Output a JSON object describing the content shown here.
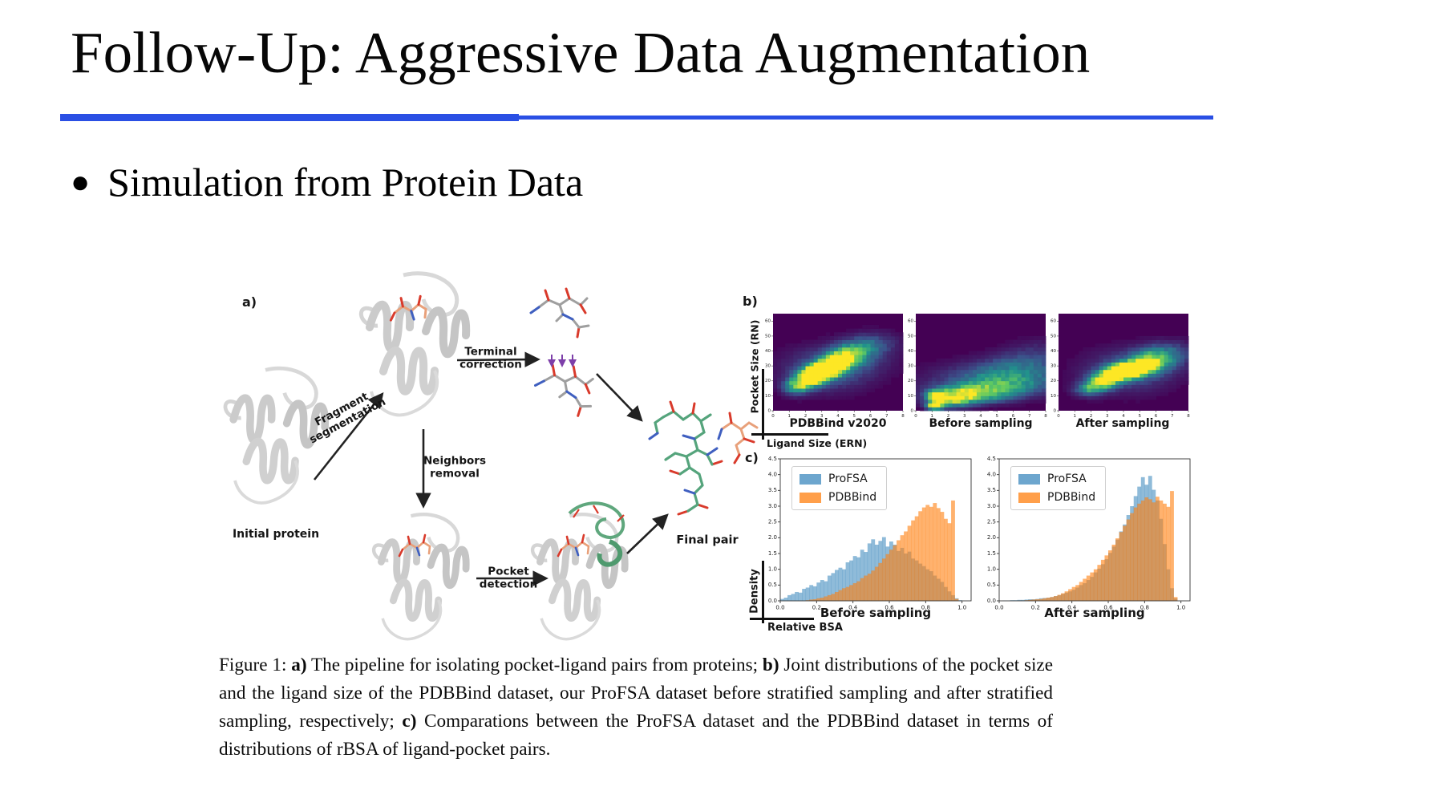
{
  "slide": {
    "title": "Follow-Up: Aggressive Data Augmentation",
    "bullet_marker": "●",
    "bullet": "Simulation from Protein Data",
    "accent_color": "#2a4fe4"
  },
  "figure": {
    "panel_a": {
      "letter": "a)",
      "initial_protein_label": "Initial protein",
      "fragment_segmentation_label": "Fragment\nsegmentation",
      "terminal_correction_label": "Terminal\ncorrection",
      "neighbors_removal_label": "Neighbors\nremoval",
      "pocket_detection_label": "Pocket\ndetection",
      "final_pair_label": "Final pair"
    },
    "panel_b": {
      "letter": "b)"
    },
    "panel_c": {
      "letter": "c)"
    }
  },
  "caption": {
    "segments": [
      {
        "text": "Figure 1: ",
        "bold": false
      },
      {
        "text": "a)",
        "bold": true
      },
      {
        "text": " The pipeline for isolating pocket-ligand pairs from proteins; ",
        "bold": false
      },
      {
        "text": "b)",
        "bold": true
      },
      {
        "text": " Joint distributions of the pocket size and the ligand size of the PDBBind dataset, our ProFSA dataset before stratified sampling and after stratified sampling, respectively; ",
        "bold": false
      },
      {
        "text": "c)",
        "bold": true
      },
      {
        "text": " Comparations between the ProFSA dataset and the PDBBind dataset in terms of distributions of rBSA of ligand-pocket pairs.",
        "bold": false
      }
    ]
  },
  "chart_data": [
    {
      "id": "heatmap_pdbbind",
      "type": "heatmap",
      "title": "PDBBind v2020",
      "xlabel": "Ligand Size (ERN)",
      "ylabel": "Pocket Size (RN)",
      "xlim": [
        0,
        8
      ],
      "ylim": [
        0,
        65
      ],
      "xticks": [
        0,
        1,
        2,
        3,
        4,
        5,
        6,
        7,
        8
      ],
      "yticks": [
        0,
        10,
        20,
        30,
        40,
        50,
        60
      ],
      "colormap": "viridis",
      "density_blobs": [
        [
          1.3,
          16,
          0.5,
          3.5,
          0.45
        ],
        [
          2.0,
          20,
          0.55,
          4,
          0.75
        ],
        [
          2.6,
          24,
          0.5,
          3.5,
          0.95
        ],
        [
          3.0,
          27,
          0.55,
          3.5,
          1.0
        ],
        [
          3.5,
          29,
          0.5,
          3.5,
          0.9
        ],
        [
          4.0,
          33,
          0.55,
          4,
          0.7
        ],
        [
          4.6,
          37,
          0.7,
          4.5,
          0.5
        ],
        [
          5.4,
          41,
          0.9,
          5,
          0.3
        ],
        [
          6.3,
          46,
          1.0,
          5,
          0.18
        ],
        [
          3.2,
          27,
          1.7,
          9,
          0.3
        ],
        [
          5.0,
          34,
          1.6,
          8,
          0.15
        ]
      ]
    },
    {
      "id": "heatmap_before",
      "type": "heatmap",
      "title": "Before sampling",
      "xlim": [
        0,
        8
      ],
      "ylim": [
        0,
        65
      ],
      "xticks": [
        0,
        1,
        2,
        3,
        4,
        5,
        6,
        7,
        8
      ],
      "yticks": [
        0,
        10,
        20,
        30,
        40,
        50,
        60
      ],
      "colormap": "viridis",
      "density_blobs": [
        [
          1.2,
          3.5,
          0.35,
          1.8,
          1.0
        ],
        [
          1.2,
          10,
          0.35,
          2.2,
          0.8
        ],
        [
          2.2,
          6,
          0.9,
          3,
          0.5
        ],
        [
          2.6,
          12,
          1.1,
          3,
          0.45
        ],
        [
          3.5,
          9,
          1.6,
          3,
          0.4
        ],
        [
          4.5,
          14,
          2.0,
          3.5,
          0.38
        ],
        [
          5.5,
          19,
          2.0,
          4,
          0.32
        ],
        [
          6.0,
          25,
          2.0,
          4.5,
          0.26
        ],
        [
          6.5,
          31,
          1.8,
          4.5,
          0.2
        ],
        [
          7.0,
          37,
          1.5,
          4,
          0.13
        ],
        [
          4.0,
          20,
          2.6,
          8,
          0.16
        ],
        [
          7.5,
          44,
          1.2,
          4,
          0.07
        ]
      ]
    },
    {
      "id": "heatmap_after",
      "type": "heatmap",
      "title": "After sampling",
      "xlim": [
        0,
        8
      ],
      "ylim": [
        0,
        65
      ],
      "xticks": [
        0,
        1,
        2,
        3,
        4,
        5,
        6,
        7,
        8
      ],
      "yticks": [
        0,
        10,
        20,
        30,
        40,
        50,
        60
      ],
      "colormap": "viridis",
      "density_blobs": [
        [
          1.8,
          14,
          0.6,
          3,
          0.35
        ],
        [
          2.4,
          18,
          0.6,
          3.5,
          0.55
        ],
        [
          3.0,
          22,
          0.6,
          3.5,
          0.7
        ],
        [
          3.6,
          26,
          0.5,
          3.2,
          0.95
        ],
        [
          4.2,
          27,
          0.5,
          3.2,
          1.0
        ],
        [
          4.8,
          28,
          0.5,
          3.2,
          0.9
        ],
        [
          5.4,
          31,
          0.7,
          4,
          0.6
        ],
        [
          6.0,
          35,
          0.9,
          4.5,
          0.38
        ],
        [
          6.8,
          40,
          1.0,
          5,
          0.2
        ],
        [
          4.2,
          26,
          1.8,
          9,
          0.26
        ],
        [
          5.8,
          33,
          1.5,
          7,
          0.14
        ]
      ]
    },
    {
      "id": "hist_before",
      "type": "histogram",
      "title": "Before sampling",
      "xlabel": "Relative BSA",
      "ylabel": "Density",
      "xlim": [
        0,
        1.05
      ],
      "ylim": [
        0,
        4.5
      ],
      "xticks": [
        0.0,
        0.2,
        0.4,
        0.6,
        0.8,
        1.0
      ],
      "yticks": [
        0.0,
        0.5,
        1.0,
        1.5,
        2.0,
        2.5,
        3.0,
        3.5,
        4.0,
        4.5
      ],
      "bin_start": 0.0,
      "bin_width": 0.02,
      "legend_position": "upper-left",
      "series": [
        {
          "name": "ProFSA",
          "color": "#1f77b4",
          "alpha": 0.5,
          "values": [
            0.06,
            0.1,
            0.18,
            0.22,
            0.28,
            0.26,
            0.38,
            0.42,
            0.5,
            0.46,
            0.58,
            0.66,
            0.62,
            0.8,
            0.88,
            0.98,
            1.05,
            1.0,
            1.22,
            1.28,
            1.42,
            1.38,
            1.62,
            1.55,
            1.82,
            1.95,
            1.78,
            1.9,
            2.02,
            1.72,
            1.88,
            1.78,
            1.58,
            1.68,
            1.5,
            1.56,
            1.34,
            1.28,
            1.18,
            1.1,
            1.0,
            0.94,
            0.8,
            0.7,
            0.6,
            0.44,
            0.3,
            0.18,
            0.08,
            0.02
          ]
        },
        {
          "name": "PDBBind",
          "color": "#ff7f0e",
          "alpha": 0.6,
          "values": [
            0,
            0,
            0,
            0,
            0,
            0,
            0,
            0.02,
            0.04,
            0.05,
            0.08,
            0.1,
            0.14,
            0.18,
            0.22,
            0.28,
            0.34,
            0.4,
            0.44,
            0.5,
            0.56,
            0.62,
            0.72,
            0.8,
            0.86,
            0.96,
            1.08,
            1.2,
            1.34,
            1.48,
            1.62,
            1.76,
            1.92,
            2.08,
            2.2,
            2.38,
            2.55,
            2.68,
            2.84,
            2.96,
            3.04,
            2.98,
            3.1,
            2.94,
            2.82,
            2.6,
            2.46,
            3.18,
            0.06,
            0
          ]
        }
      ]
    },
    {
      "id": "hist_after",
      "type": "histogram",
      "title": "After sampling",
      "xlim": [
        0,
        1.05
      ],
      "ylim": [
        0,
        4.5
      ],
      "xticks": [
        0.0,
        0.2,
        0.4,
        0.6,
        0.8,
        1.0
      ],
      "yticks": [
        0.0,
        0.5,
        1.0,
        1.5,
        2.0,
        2.5,
        3.0,
        3.5,
        4.0,
        4.5
      ],
      "bin_start": 0.0,
      "bin_width": 0.02,
      "legend_position": "upper-left",
      "series": [
        {
          "name": "ProFSA",
          "color": "#1f77b4",
          "alpha": 0.5,
          "values": [
            0,
            0.01,
            0.01,
            0.02,
            0.02,
            0.03,
            0.03,
            0.04,
            0.05,
            0.05,
            0.06,
            0.08,
            0.09,
            0.1,
            0.12,
            0.15,
            0.18,
            0.22,
            0.26,
            0.3,
            0.35,
            0.42,
            0.5,
            0.56,
            0.66,
            0.76,
            0.9,
            1.02,
            1.16,
            1.32,
            1.52,
            1.72,
            1.94,
            2.2,
            2.42,
            2.72,
            3.0,
            3.32,
            3.62,
            3.92,
            3.68,
            3.96,
            3.52,
            3.18,
            2.6,
            1.8,
            1.0,
            0.4,
            0.08,
            0
          ]
        },
        {
          "name": "PDBBind",
          "color": "#ff7f0e",
          "alpha": 0.6,
          "values": [
            0,
            0,
            0,
            0,
            0,
            0.01,
            0.01,
            0.02,
            0.03,
            0.04,
            0.05,
            0.06,
            0.08,
            0.1,
            0.12,
            0.15,
            0.19,
            0.24,
            0.3,
            0.37,
            0.44,
            0.5,
            0.6,
            0.7,
            0.8,
            0.9,
            1.0,
            1.14,
            1.3,
            1.44,
            1.6,
            1.78,
            1.98,
            2.18,
            2.38,
            2.58,
            2.78,
            2.96,
            3.08,
            3.18,
            3.28,
            3.22,
            3.12,
            3.3,
            3.18,
            3.08,
            2.98,
            3.48,
            0.12,
            0
          ]
        }
      ]
    }
  ]
}
